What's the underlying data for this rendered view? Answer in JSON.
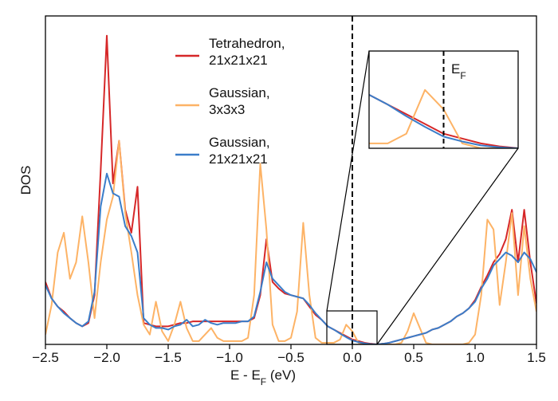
{
  "chart_data": {
    "type": "line",
    "xlabel": [
      "E - E",
      "F",
      " (eV)"
    ],
    "ylabel": "DOS",
    "x": [
      -2.5,
      -2.45,
      -2.4,
      -2.35,
      -2.3,
      -2.25,
      -2.2,
      -2.15,
      -2.1,
      -2.05,
      -2.0,
      -1.95,
      -1.9,
      -1.85,
      -1.8,
      -1.75,
      -1.7,
      -1.65,
      -1.6,
      -1.55,
      -1.5,
      -1.45,
      -1.4,
      -1.35,
      -1.3,
      -1.25,
      -1.2,
      -1.15,
      -1.1,
      -1.05,
      -1.0,
      -0.95,
      -0.9,
      -0.85,
      -0.8,
      -0.75,
      -0.7,
      -0.65,
      -0.6,
      -0.55,
      -0.5,
      -0.45,
      -0.4,
      -0.35,
      -0.3,
      -0.25,
      -0.2,
      -0.15,
      -0.1,
      -0.05,
      0.0,
      0.05,
      0.1,
      0.15,
      0.2,
      0.25,
      0.3,
      0.35,
      0.4,
      0.45,
      0.5,
      0.55,
      0.6,
      0.65,
      0.7,
      0.75,
      0.8,
      0.85,
      0.9,
      0.95,
      1.0,
      1.05,
      1.1,
      1.15,
      1.2,
      1.25,
      1.3,
      1.35,
      1.4,
      1.45,
      1.5
    ],
    "series": [
      {
        "name": "Tetrahedron, 21x21x21",
        "color": "#d62728",
        "values": [
          1.9,
          1.4,
          1.15,
          1.0,
          0.8,
          0.65,
          0.55,
          0.65,
          1.5,
          5.3,
          9.4,
          4.9,
          6.2,
          4.1,
          3.4,
          4.8,
          0.65,
          0.6,
          0.55,
          0.55,
          0.55,
          0.6,
          0.65,
          0.65,
          0.7,
          0.7,
          0.7,
          0.7,
          0.7,
          0.7,
          0.7,
          0.7,
          0.7,
          0.7,
          0.8,
          1.5,
          3.2,
          1.9,
          1.7,
          1.55,
          1.5,
          1.45,
          1.4,
          1.15,
          0.9,
          0.75,
          0.55,
          0.45,
          0.35,
          0.25,
          0.15,
          0.1,
          0.05,
          0.02,
          0,
          0.02,
          0.05,
          0.1,
          0.15,
          0.2,
          0.25,
          0.3,
          0.35,
          0.45,
          0.5,
          0.6,
          0.7,
          0.85,
          0.95,
          1.1,
          1.35,
          1.75,
          2.1,
          2.5,
          2.75,
          3.2,
          4.1,
          2.5,
          4.1,
          2.5,
          1.25
        ]
      },
      {
        "name": "Gaussian, 3x3x3",
        "color": "#fdb366",
        "values": [
          0.3,
          1.2,
          2.8,
          3.4,
          2.0,
          2.5,
          3.9,
          2.5,
          0.8,
          2.5,
          3.8,
          4.5,
          6.2,
          4.0,
          2.8,
          1.5,
          0.6,
          0.3,
          1.3,
          0.4,
          0.1,
          0.6,
          1.3,
          0.5,
          0.1,
          0.1,
          0.3,
          0.5,
          0.2,
          0.1,
          0.1,
          0.1,
          0.1,
          0.2,
          1.5,
          5.5,
          3.5,
          0.6,
          0.1,
          0.1,
          0.2,
          1.0,
          3.7,
          1.5,
          0.2,
          0.05,
          0.05,
          0.05,
          0.15,
          0.6,
          0.4,
          0.05,
          0,
          0,
          0,
          0,
          0,
          0,
          0.05,
          0.4,
          0.95,
          0.5,
          0.05,
          0,
          0,
          0,
          0,
          0,
          0,
          0.05,
          0.3,
          1.5,
          3.8,
          3.5,
          1.2,
          2.5,
          4.0,
          1.5,
          3.6,
          2.0,
          1.0
        ]
      },
      {
        "name": "Gaussian, 21x21x21",
        "color": "#3a7dc9",
        "values": [
          1.8,
          1.4,
          1.15,
          0.95,
          0.8,
          0.65,
          0.55,
          0.7,
          1.6,
          4.2,
          5.2,
          4.6,
          4.5,
          3.6,
          3.3,
          2.8,
          0.8,
          0.6,
          0.5,
          0.5,
          0.45,
          0.55,
          0.6,
          0.75,
          0.55,
          0.6,
          0.75,
          0.65,
          0.6,
          0.65,
          0.65,
          0.65,
          0.7,
          0.7,
          0.85,
          1.6,
          2.5,
          2.0,
          1.8,
          1.6,
          1.5,
          1.45,
          1.4,
          1.2,
          0.95,
          0.75,
          0.55,
          0.45,
          0.33,
          0.22,
          0.12,
          0.07,
          0.03,
          0.01,
          0,
          0.02,
          0.05,
          0.1,
          0.15,
          0.2,
          0.25,
          0.3,
          0.35,
          0.45,
          0.5,
          0.6,
          0.7,
          0.85,
          0.95,
          1.1,
          1.3,
          1.7,
          2.0,
          2.4,
          2.6,
          2.8,
          2.7,
          2.5,
          2.8,
          2.6,
          2.2
        ]
      }
    ],
    "xlim": [
      -2.5,
      1.5
    ],
    "ylim": [
      0,
      10
    ],
    "xticks": [
      {
        "value": -2.5,
        "label": "−2.5"
      },
      {
        "value": -2.0,
        "label": "−2.0"
      },
      {
        "value": -1.5,
        "label": "−1.5"
      },
      {
        "value": -1.0,
        "label": "−1.0"
      },
      {
        "value": -0.5,
        "label": "−0.5"
      },
      {
        "value": 0,
        "label": "0.0"
      },
      0.5,
      {
        "value": 1,
        "label": "1.0"
      },
      1.5
    ],
    "fermi_level": 0,
    "inset": {
      "xlim": [
        -0.2,
        0.2
      ],
      "ylim": [
        0,
        1
      ],
      "label": [
        "E",
        "F"
      ]
    }
  }
}
